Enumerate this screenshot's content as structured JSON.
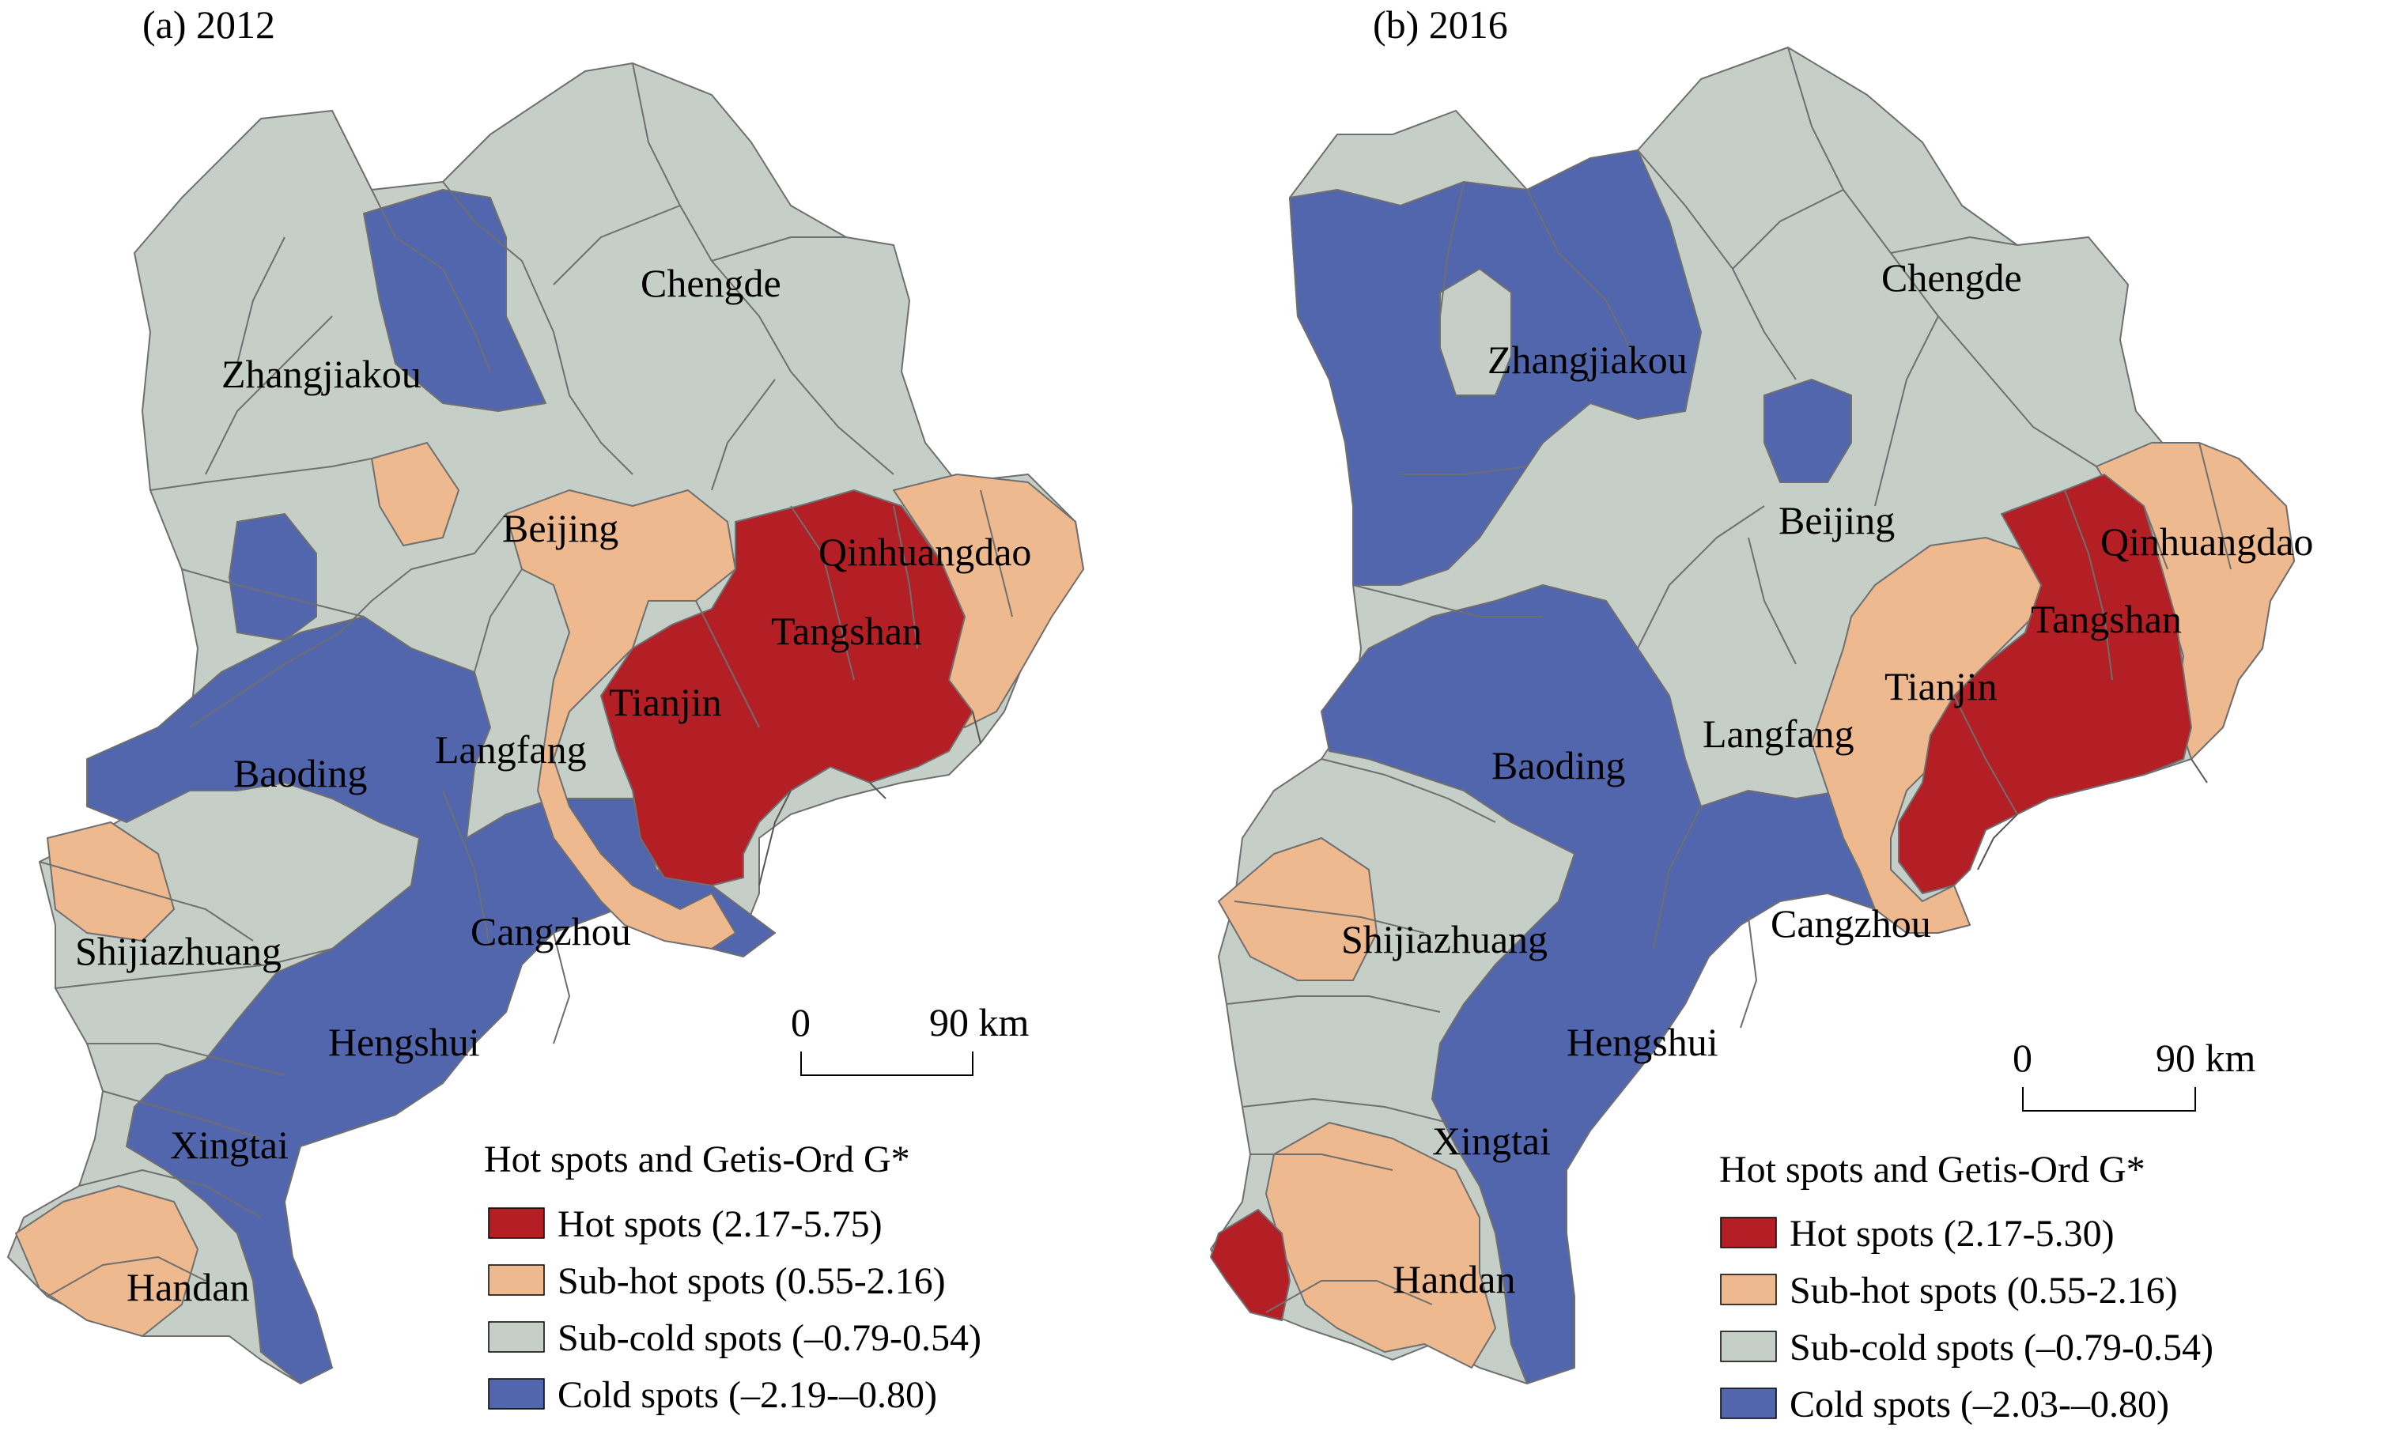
{
  "colors": {
    "hot": "#b31f24",
    "subhot": "#eeb98e",
    "subcold": "#c6cec8",
    "cold": "#5266ad",
    "boundary": "#6f6f6f"
  },
  "panels": [
    {
      "title": "(a) 2012",
      "scale": {
        "zero": "0",
        "end": "90 km"
      },
      "legend": {
        "title": "Hot spots and Getis-Ord G*",
        "items": [
          {
            "class": "hot",
            "label": "Hot spots (2.17-5.75)"
          },
          {
            "class": "subhot",
            "label": "Sub-hot spots (0.55-2.16)"
          },
          {
            "class": "subcold",
            "label": "Sub-cold spots (–0.79-0.54)"
          },
          {
            "class": "cold",
            "label": "Cold spots (–2.19-–0.80)"
          }
        ]
      },
      "cities": {
        "zhangjiakou": "Zhangjiakou",
        "chengde": "Chengde",
        "beijing": "Beijing",
        "qinhuangdao": "Qinhuangdao",
        "tangshan": "Tangshan",
        "tianjin": "Tianjin",
        "langfang": "Langfang",
        "baoding": "Baoding",
        "cangzhou": "Cangzhou",
        "shijiazhuang": "Shijiazhuang",
        "hengshui": "Hengshui",
        "xingtai": "Xingtai",
        "handan": "Handan"
      }
    },
    {
      "title": "(b) 2016",
      "scale": {
        "zero": "0",
        "end": "90 km"
      },
      "legend": {
        "title": "Hot spots and Getis-Ord G*",
        "items": [
          {
            "class": "hot",
            "label": "Hot spots (2.17-5.30)"
          },
          {
            "class": "subhot",
            "label": "Sub-hot spots (0.55-2.16)"
          },
          {
            "class": "subcold",
            "label": "Sub-cold spots (–0.79-0.54)"
          },
          {
            "class": "cold",
            "label": "Cold spots (–2.03-–0.80)"
          }
        ]
      },
      "cities": {
        "zhangjiakou": "Zhangjiakou",
        "chengde": "Chengde",
        "beijing": "Beijing",
        "qinhuangdao": "Qinhuangdao",
        "tangshan": "Tangshan",
        "tianjin": "Tianjin",
        "langfang": "Langfang",
        "baoding": "Baoding",
        "cangzhou": "Cangzhou",
        "shijiazhuang": "Shijiazhuang",
        "hengshui": "Hengshui",
        "xingtai": "Xingtai",
        "handan": "Handan"
      }
    }
  ]
}
